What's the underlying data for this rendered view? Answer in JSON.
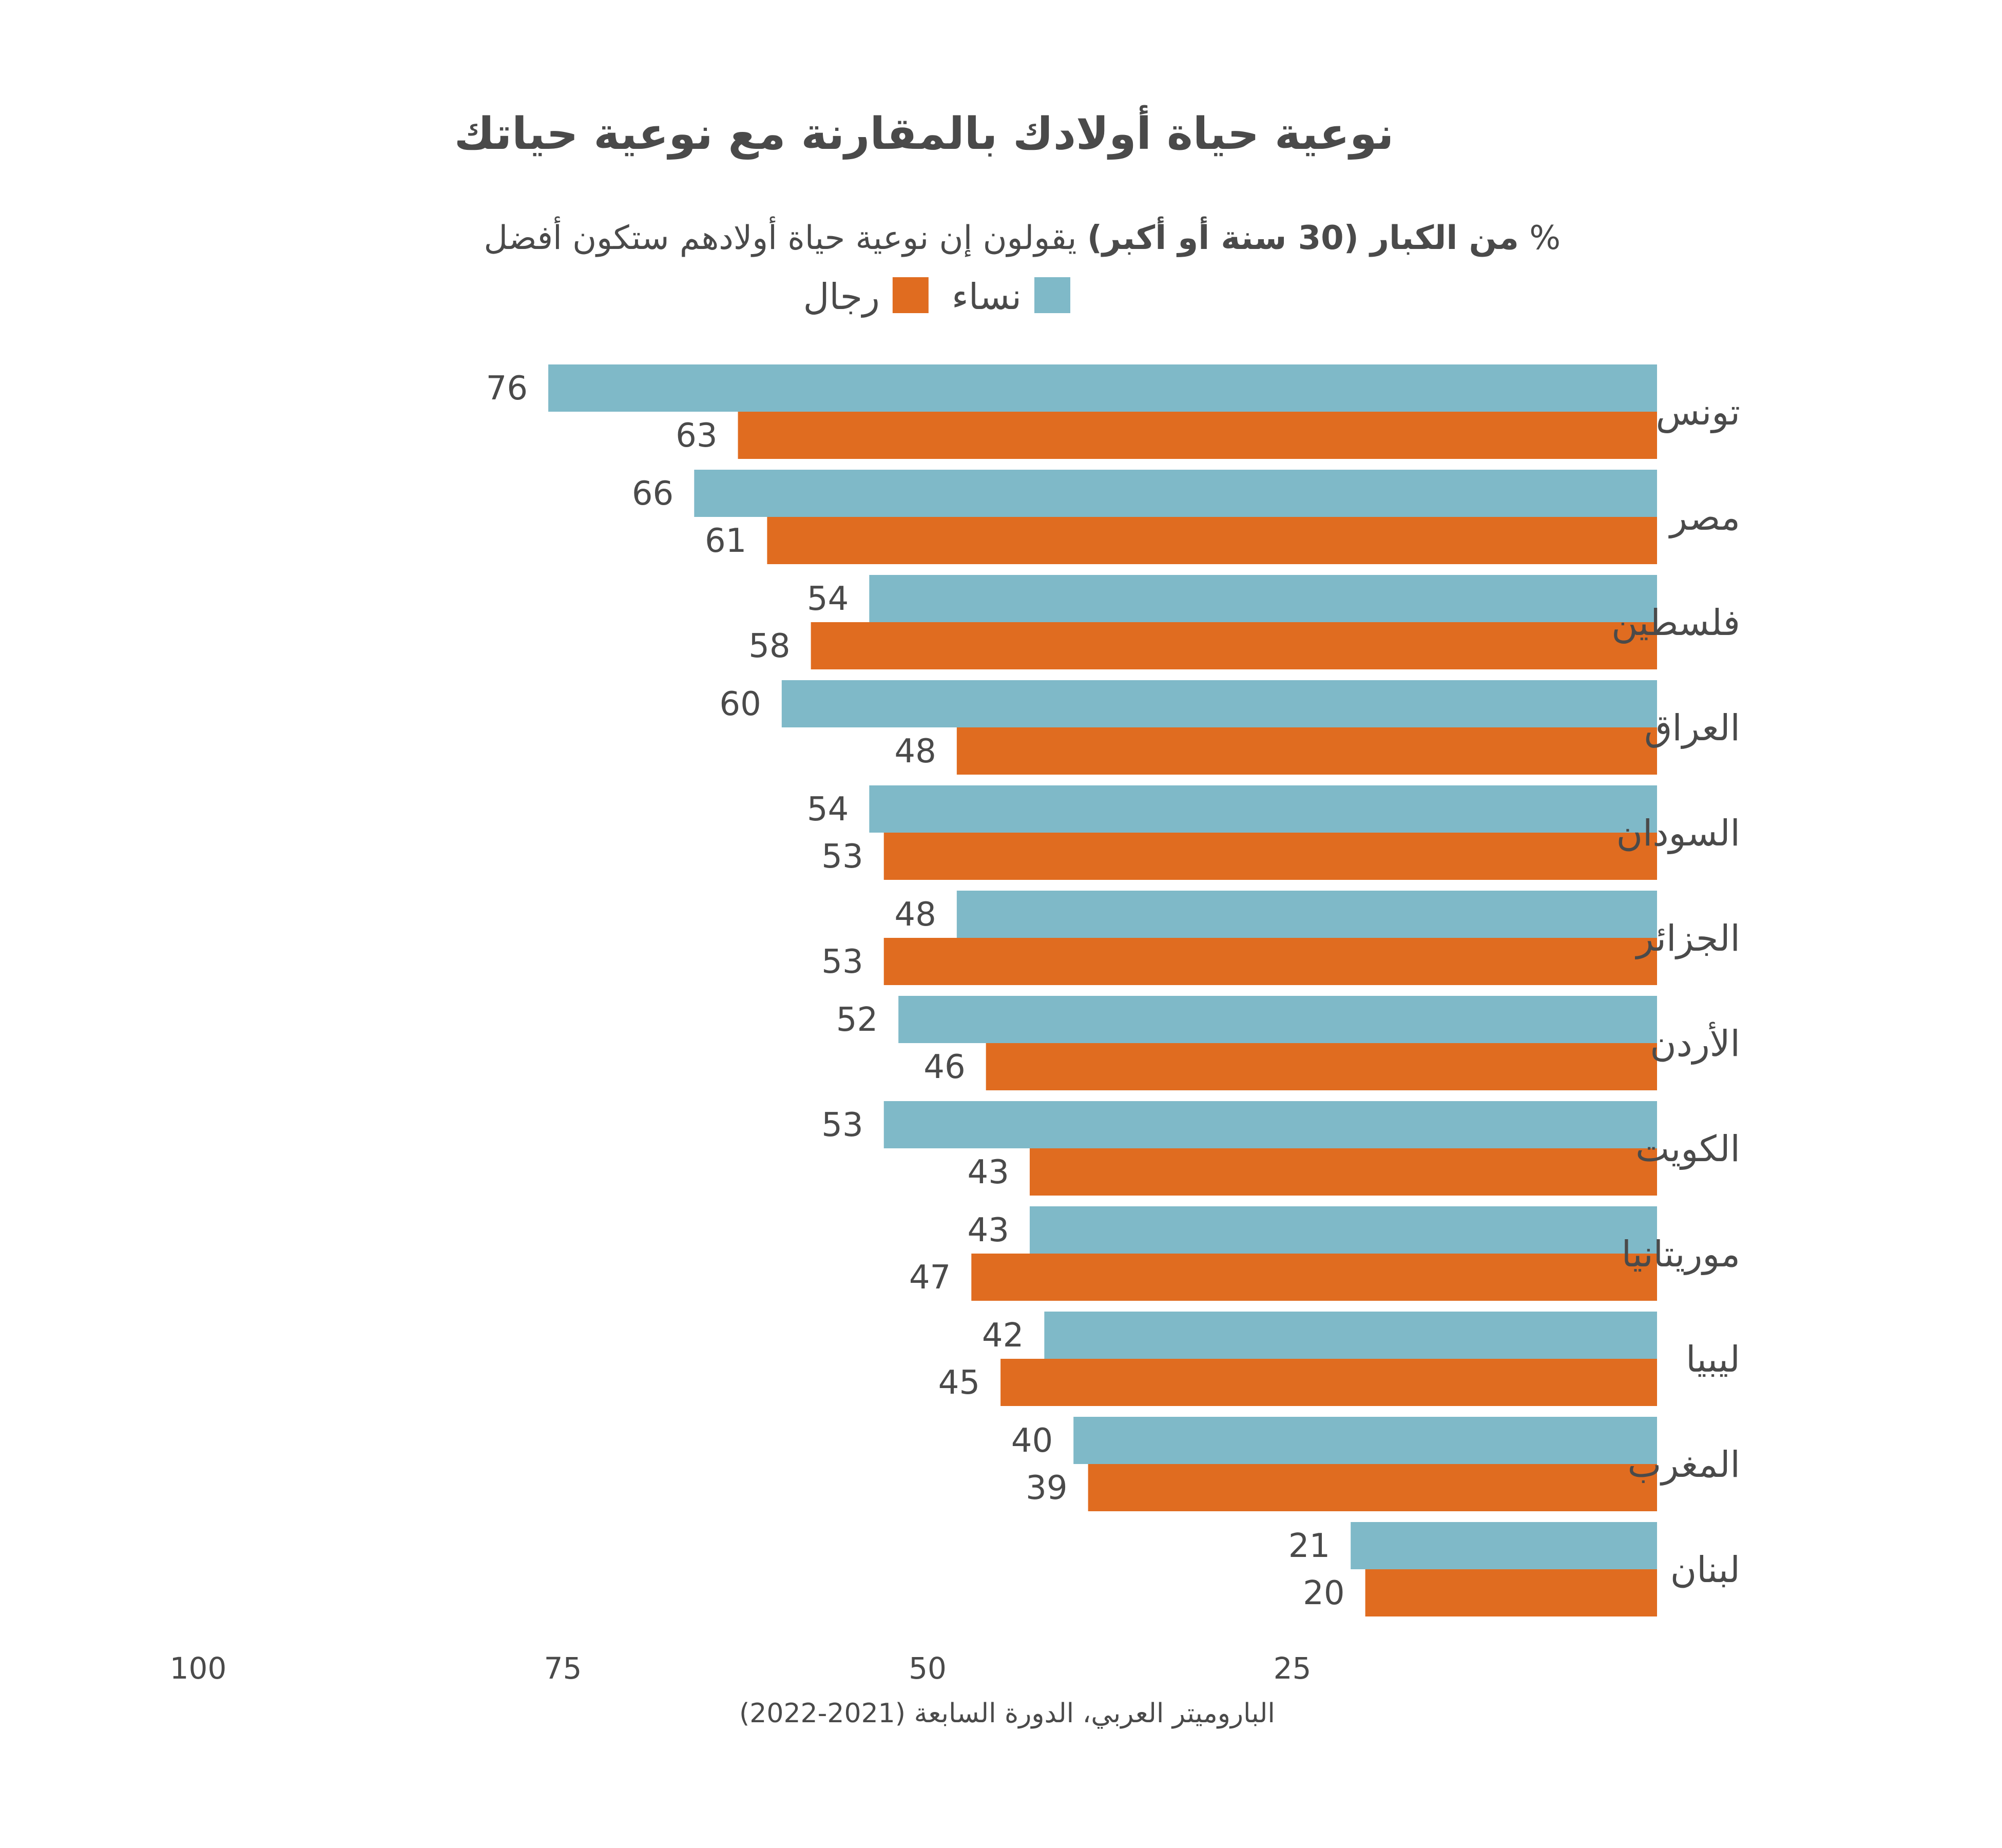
{
  "chart_data": {
    "type": "bar",
    "orientation": "horizontal",
    "title": "نوعية حياة أولادك بالمقارنة مع نوعية حياتك",
    "subtitle": {
      "prefix": "%",
      "bold": "من الكبار (30 سنة أو أكبر)",
      "rest": "يقولون إن نوعية حياة أولادهم ستكون أفضل"
    },
    "categories": [
      "تونس",
      "مصر",
      "فلسطين",
      "العراق",
      "السودان",
      "الجزائر",
      "الأردن",
      "الكويت",
      "موريتانيا",
      "ليبيا",
      "المغرب",
      "لبنان"
    ],
    "series": [
      {
        "name": "نساء",
        "color": "#7fb9c8",
        "values": [
          76,
          66,
          54,
          60,
          54,
          48,
          52,
          53,
          43,
          42,
          40,
          21
        ]
      },
      {
        "name": "رجال",
        "color": "#e06c20",
        "values": [
          63,
          61,
          58,
          48,
          53,
          53,
          46,
          43,
          47,
          45,
          39,
          20
        ]
      }
    ],
    "xlim": [
      0,
      100
    ],
    "x_direction": "right-to-left",
    "x_ticks": [
      100,
      75,
      50,
      25
    ],
    "grid": false,
    "legend": "top-center",
    "source": "الباروميتر العربي، الدورة السابعة (2021-2022)"
  }
}
